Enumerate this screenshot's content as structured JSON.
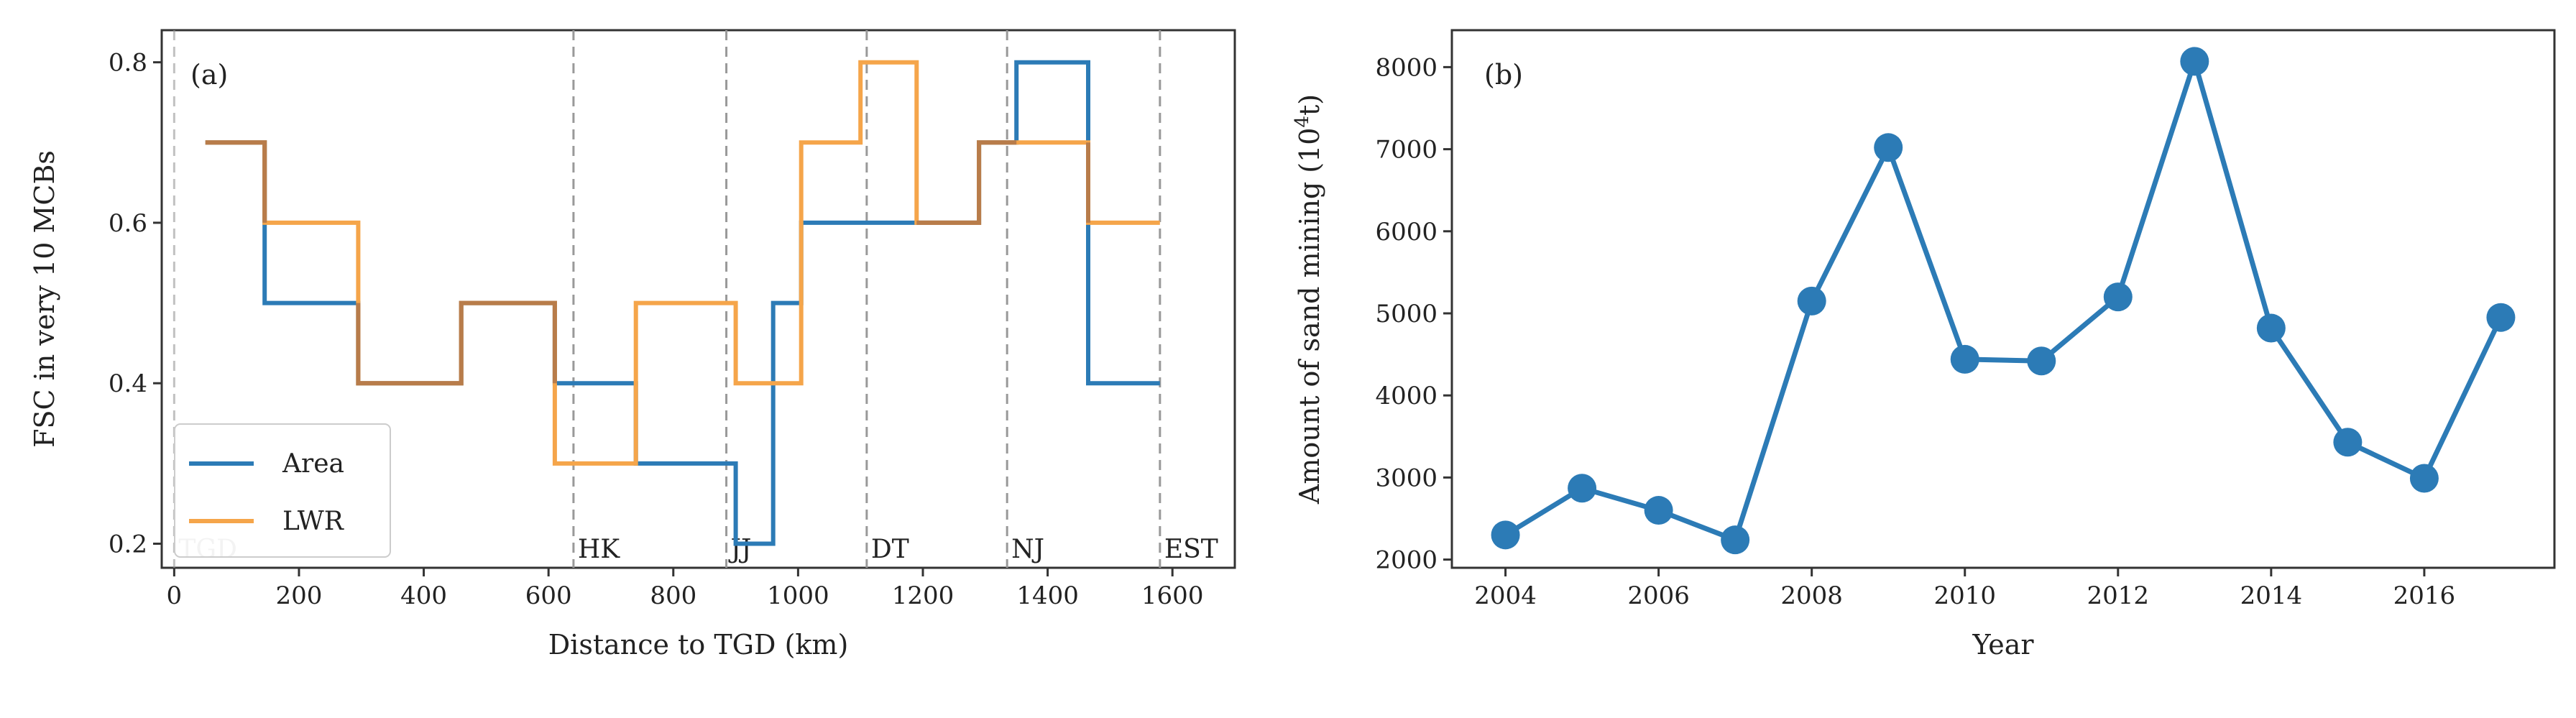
{
  "colors": {
    "area": "#2c7bb6",
    "lwr": "#f5a54a",
    "overlap": "#b87c4a",
    "divider": "#999999",
    "axis": "#333333"
  },
  "chart_data": [
    {
      "panel_label": "(a)",
      "type": "step",
      "xlabel": "Distance to TGD (km)",
      "ylabel": "FSC in very 10 MCBs",
      "xlim": [
        -20,
        1700
      ],
      "ylim": [
        0.17,
        0.84
      ],
      "xticks": [
        0,
        200,
        400,
        600,
        800,
        1000,
        1200,
        1400,
        1600
      ],
      "yticks": [
        0.2,
        0.4,
        0.6,
        0.8
      ],
      "ytick_labels": [
        "0.2",
        "0.4",
        "0.6",
        "0.8"
      ],
      "series": [
        {
          "name": "Area",
          "points": [
            [
              50,
              0.7
            ],
            [
              145,
              0.7
            ],
            [
              145,
              0.5
            ],
            [
              295,
              0.5
            ],
            [
              295,
              0.4
            ],
            [
              460,
              0.4
            ],
            [
              460,
              0.5
            ],
            [
              610,
              0.5
            ],
            [
              610,
              0.4
            ],
            [
              740,
              0.4
            ],
            [
              740,
              0.3
            ],
            [
              900,
              0.3
            ],
            [
              900,
              0.2
            ],
            [
              960,
              0.2
            ],
            [
              960,
              0.5
            ],
            [
              1005,
              0.5
            ],
            [
              1005,
              0.6
            ],
            [
              1190,
              0.6
            ],
            [
              1190,
              0.6
            ],
            [
              1290,
              0.6
            ],
            [
              1290,
              0.7
            ],
            [
              1350,
              0.7
            ],
            [
              1350,
              0.8
            ],
            [
              1465,
              0.8
            ],
            [
              1465,
              0.4
            ],
            [
              1580,
              0.4
            ]
          ]
        },
        {
          "name": "LWR",
          "points": [
            [
              50,
              0.7
            ],
            [
              145,
              0.7
            ],
            [
              145,
              0.6
            ],
            [
              295,
              0.6
            ],
            [
              295,
              0.4
            ],
            [
              460,
              0.4
            ],
            [
              460,
              0.5
            ],
            [
              610,
              0.5
            ],
            [
              610,
              0.3
            ],
            [
              740,
              0.3
            ],
            [
              740,
              0.5
            ],
            [
              900,
              0.5
            ],
            [
              900,
              0.4
            ],
            [
              1005,
              0.4
            ],
            [
              1005,
              0.7
            ],
            [
              1100,
              0.7
            ],
            [
              1100,
              0.8
            ],
            [
              1190,
              0.8
            ],
            [
              1190,
              0.6
            ],
            [
              1290,
              0.6
            ],
            [
              1290,
              0.7
            ],
            [
              1465,
              0.7
            ],
            [
              1465,
              0.6
            ],
            [
              1580,
              0.6
            ]
          ]
        }
      ],
      "overlap_segments": [
        [
          [
            50,
            0.7
          ],
          [
            145,
            0.7
          ],
          [
            145,
            0.6
          ]
        ],
        [
          [
            295,
            0.5
          ],
          [
            295,
            0.4
          ],
          [
            460,
            0.4
          ],
          [
            460,
            0.5
          ],
          [
            610,
            0.5
          ],
          [
            610,
            0.4
          ]
        ],
        [
          [
            1190,
            0.6
          ],
          [
            1290,
            0.6
          ],
          [
            1290,
            0.7
          ],
          [
            1350,
            0.7
          ]
        ],
        [
          [
            1465,
            0.7
          ],
          [
            1465,
            0.6
          ]
        ]
      ],
      "dividers": [
        {
          "x": 0,
          "label": "TGD",
          "faded": true
        },
        {
          "x": 640,
          "label": "HK",
          "faded": false
        },
        {
          "x": 885,
          "label": "JJ",
          "faded": false
        },
        {
          "x": 1110,
          "label": "DT",
          "faded": false
        },
        {
          "x": 1335,
          "label": "NJ",
          "faded": false
        },
        {
          "x": 1580,
          "label": "EST",
          "faded": false
        }
      ],
      "legend": [
        {
          "name": "Area",
          "color_key": "area"
        },
        {
          "name": "LWR",
          "color_key": "lwr"
        }
      ],
      "legend_position": "lower-left"
    },
    {
      "panel_label": "(b)",
      "type": "line",
      "xlabel": "Year",
      "ylabel_main": "Amount of sand mining (10",
      "ylabel_sup": "4",
      "ylabel_end": "t)",
      "x": [
        2004,
        2005,
        2006,
        2007,
        2008,
        2009,
        2010,
        2011,
        2012,
        2013,
        2014,
        2015,
        2016,
        2017
      ],
      "values": [
        2300,
        2870,
        2600,
        2240,
        5150,
        7020,
        4440,
        4420,
        5200,
        8070,
        4820,
        3430,
        2990,
        4950
      ],
      "xlim": [
        2003.3,
        2017.7
      ],
      "ylim": [
        1900,
        8450
      ],
      "xticks": [
        2004,
        2006,
        2008,
        2010,
        2012,
        2014,
        2016
      ],
      "yticks": [
        2000,
        3000,
        4000,
        5000,
        6000,
        7000,
        8000
      ]
    }
  ]
}
